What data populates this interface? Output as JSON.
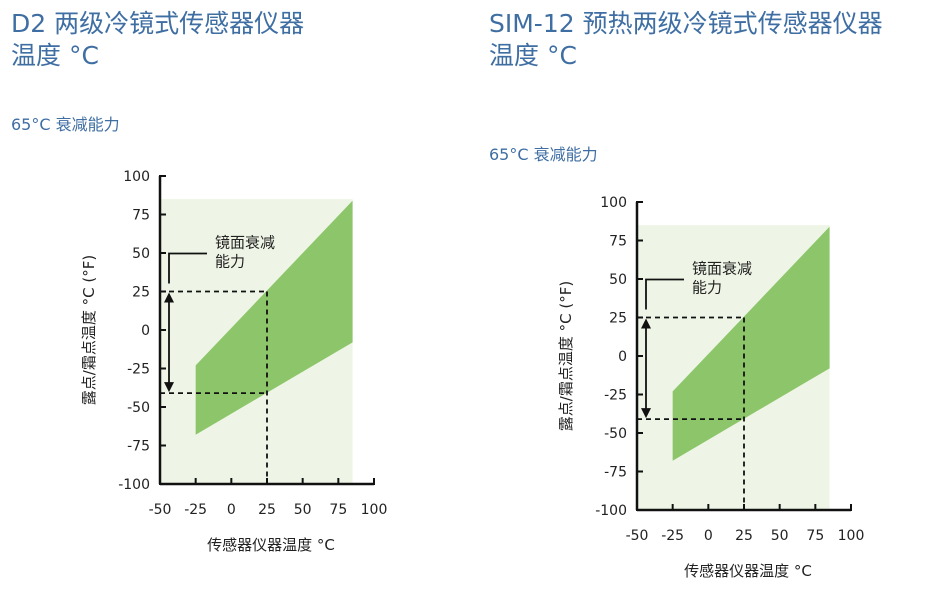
{
  "chart_data": [
    {
      "type": "area",
      "title": [
        "D2 两级冷镜式传感器仪器",
        "温度 °C"
      ],
      "subtitle": "65°C 衰减能力",
      "xlabel": "传感器仪器温度 °C",
      "ylabel": "露点/霜点温度 °C (°F)",
      "xlim": [
        -50,
        100
      ],
      "ylim": [
        -100,
        100
      ],
      "xticks": [
        -50,
        -25,
        0,
        25,
        50,
        75,
        100
      ],
      "yticks": [
        100,
        75,
        50,
        25,
        0,
        -25,
        -50,
        -75,
        -100
      ],
      "background_region": {
        "x": [
          -50,
          85
        ],
        "y": [
          -100,
          85
        ],
        "color": "#eef5e6"
      },
      "band": {
        "color": "#8dc66a",
        "upper": [
          {
            "x": -25,
            "y": -23
          },
          {
            "x": 85,
            "y": 84
          }
        ],
        "lower": [
          {
            "x": -25,
            "y": -68
          },
          {
            "x": 85,
            "y": -8
          }
        ]
      },
      "annotation": {
        "label": [
          "镜面衰减",
          "能力"
        ],
        "at_x": 25,
        "y_top": 25,
        "y_bottom": -41
      }
    },
    {
      "type": "area",
      "title": [
        "SIM-12 预热两级冷镜式传感器仪器",
        "温度 °C"
      ],
      "subtitle": "65°C 衰减能力",
      "xlabel": "传感器仪器温度 °C",
      "ylabel": "露点/霜点温度 °C (°F)",
      "xlim": [
        -50,
        100
      ],
      "ylim": [
        -100,
        100
      ],
      "xticks": [
        -50,
        -25,
        0,
        25,
        50,
        75,
        100
      ],
      "yticks": [
        100,
        75,
        50,
        25,
        0,
        -25,
        -50,
        -75,
        -100
      ],
      "background_region": {
        "x": [
          -50,
          85
        ],
        "y": [
          -100,
          85
        ],
        "color": "#eef5e6"
      },
      "band": {
        "color": "#8dc66a",
        "upper": [
          {
            "x": -25,
            "y": -23
          },
          {
            "x": 85,
            "y": 84
          }
        ],
        "lower": [
          {
            "x": -25,
            "y": -68
          },
          {
            "x": 85,
            "y": -8
          }
        ]
      },
      "annotation": {
        "label": [
          "镜面衰减",
          "能力"
        ],
        "at_x": 25,
        "y_top": 25,
        "y_bottom": -41
      }
    }
  ]
}
